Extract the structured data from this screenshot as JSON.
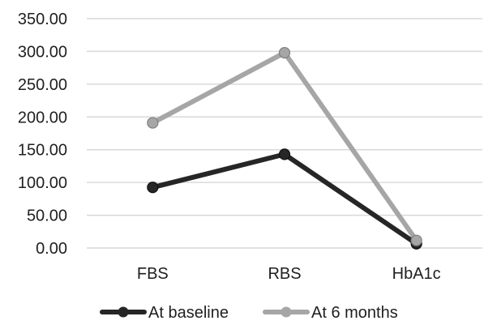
{
  "chart_data": {
    "type": "line",
    "title": "",
    "xlabel": "",
    "ylabel": "",
    "categories": [
      "FBS",
      "RBS",
      "HbA1c"
    ],
    "ylim": [
      0,
      350
    ],
    "yticks": [
      0,
      50,
      100,
      150,
      200,
      250,
      300,
      350
    ],
    "ytick_labels": [
      "0.00",
      "50.00",
      "100.00",
      "150.00",
      "200.00",
      "250.00",
      "300.00",
      "350.00"
    ],
    "grid": "horizontal",
    "legend_position": "bottom",
    "series": [
      {
        "name": "At baseline",
        "values": [
          92.5,
          143,
          6.5
        ],
        "color": "#262626"
      },
      {
        "name": "At 6 months",
        "values": [
          191,
          298,
          11.5
        ],
        "color": "#a6a6a6"
      }
    ]
  }
}
